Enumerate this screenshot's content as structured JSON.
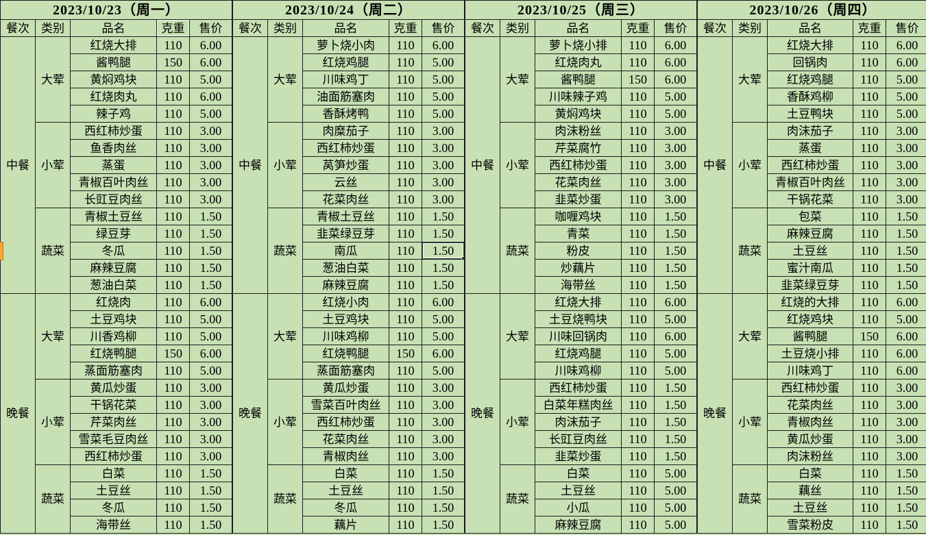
{
  "columns": {
    "meal": "餐次",
    "category": "类别",
    "dish": "品名",
    "weight": "克重",
    "price": "售价"
  },
  "days": [
    {
      "date": "2023/10/23（周一）",
      "meals": [
        {
          "name": "中餐",
          "categories": [
            {
              "name": "大荤",
              "items": [
                [
                  "红烧大排",
                  "110",
                  "6.00"
                ],
                [
                  "酱鸭腿",
                  "150",
                  "6.00"
                ],
                [
                  "黄焖鸡块",
                  "110",
                  "5.00"
                ],
                [
                  "红烧肉丸",
                  "110",
                  "6.00"
                ],
                [
                  "辣子鸡",
                  "110",
                  "5.00"
                ]
              ]
            },
            {
              "name": "小荤",
              "items": [
                [
                  "西红柿炒蛋",
                  "110",
                  "3.00"
                ],
                [
                  "鱼香肉丝",
                  "110",
                  "3.00"
                ],
                [
                  "蒸蛋",
                  "110",
                  "3.00"
                ],
                [
                  "青椒百叶肉丝",
                  "110",
                  "3.00"
                ],
                [
                  "长豇豆肉丝",
                  "110",
                  "3.00"
                ]
              ]
            },
            {
              "name": "蔬菜",
              "items": [
                [
                  "青椒土豆丝",
                  "110",
                  "1.50"
                ],
                [
                  "绿豆芽",
                  "110",
                  "1.50"
                ],
                [
                  "冬瓜",
                  "110",
                  "1.50"
                ],
                [
                  "麻辣豆腐",
                  "110",
                  "1.50"
                ],
                [
                  "葱油白菜",
                  "110",
                  "1.50"
                ]
              ]
            }
          ]
        },
        {
          "name": "晚餐",
          "categories": [
            {
              "name": "大荤",
              "items": [
                [
                  "红烧肉",
                  "110",
                  "6.00"
                ],
                [
                  "土豆鸡块",
                  "110",
                  "5.00"
                ],
                [
                  "川香鸡柳",
                  "110",
                  "5.00"
                ],
                [
                  "红烧鸭腿",
                  "150",
                  "6.00"
                ],
                [
                  "蒸面筋塞肉",
                  "110",
                  "5.00"
                ]
              ]
            },
            {
              "name": "小荤",
              "items": [
                [
                  "黄瓜炒蛋",
                  "110",
                  "3.00"
                ],
                [
                  "干锅花菜",
                  "110",
                  "3.00"
                ],
                [
                  "芹菜肉丝",
                  "110",
                  "3.00"
                ],
                [
                  "雪菜毛豆肉丝",
                  "110",
                  "3.00"
                ],
                [
                  "西红柿炒蛋",
                  "110",
                  "3.00"
                ]
              ]
            },
            {
              "name": "蔬菜",
              "items": [
                [
                  "白菜",
                  "110",
                  "1.50"
                ],
                [
                  "土豆丝",
                  "110",
                  "1.50"
                ],
                [
                  "冬瓜",
                  "110",
                  "1.50"
                ],
                [
                  "海带丝",
                  "110",
                  "1.50"
                ]
              ]
            }
          ]
        }
      ]
    },
    {
      "date": "2023/10/24（周二）",
      "meals": [
        {
          "name": "中餐",
          "categories": [
            {
              "name": "大荤",
              "items": [
                [
                  "萝卜烧小肉",
                  "110",
                  "6.00"
                ],
                [
                  "红烧鸡腿",
                  "110",
                  "5.00"
                ],
                [
                  "川味鸡丁",
                  "110",
                  "5.00"
                ],
                [
                  "油面筋塞肉",
                  "110",
                  "5.00"
                ],
                [
                  "香酥烤鸭",
                  "110",
                  "5.00"
                ]
              ]
            },
            {
              "name": "小荤",
              "items": [
                [
                  "肉糜茄子",
                  "110",
                  "3.00"
                ],
                [
                  "西红柿炒蛋",
                  "110",
                  "3.00"
                ],
                [
                  "莴笋炒蛋",
                  "110",
                  "3.00"
                ],
                [
                  "云丝",
                  "110",
                  "3.00"
                ],
                [
                  "花菜肉丝",
                  "110",
                  "3.00"
                ]
              ]
            },
            {
              "name": "蔬菜",
              "items": [
                [
                  "青椒土豆丝",
                  "110",
                  "1.50"
                ],
                [
                  "韭菜绿豆芽",
                  "110",
                  "1.50"
                ],
                [
                  "南瓜",
                  "110",
                  "1.50"
                ],
                [
                  "葱油白菜",
                  "110",
                  "1.50"
                ],
                [
                  "麻辣豆腐",
                  "110",
                  "1.50"
                ]
              ]
            }
          ]
        },
        {
          "name": "晚餐",
          "categories": [
            {
              "name": "大荤",
              "items": [
                [
                  "红烧小肉",
                  "110",
                  "6.00"
                ],
                [
                  "土豆鸡块",
                  "110",
                  "5.00"
                ],
                [
                  "川味鸡柳",
                  "110",
                  "5.00"
                ],
                [
                  "红烧鸭腿",
                  "150",
                  "6.00"
                ],
                [
                  "蒸面筋塞肉",
                  "110",
                  "5.00"
                ]
              ]
            },
            {
              "name": "小荤",
              "items": [
                [
                  "黄瓜炒蛋",
                  "110",
                  "3.00"
                ],
                [
                  "雪菜百叶肉丝",
                  "110",
                  "3.00"
                ],
                [
                  "西红柿炒蛋",
                  "110",
                  "3.00"
                ],
                [
                  "花菜肉丝",
                  "110",
                  "3.00"
                ],
                [
                  "青椒肉丝",
                  "110",
                  "3.00"
                ]
              ]
            },
            {
              "name": "蔬菜",
              "items": [
                [
                  "白菜",
                  "110",
                  "1.50"
                ],
                [
                  "土豆丝",
                  "110",
                  "1.50"
                ],
                [
                  "冬瓜",
                  "110",
                  "1.50"
                ],
                [
                  "藕片",
                  "110",
                  "1.50"
                ]
              ]
            }
          ]
        }
      ]
    },
    {
      "date": "2023/10/25（周三）",
      "meals": [
        {
          "name": "中餐",
          "categories": [
            {
              "name": "大荤",
              "items": [
                [
                  "萝卜烧小排",
                  "110",
                  "6.00"
                ],
                [
                  "红烧肉丸",
                  "110",
                  "6.00"
                ],
                [
                  "酱鸭腿",
                  "150",
                  "6.00"
                ],
                [
                  "川味辣子鸡",
                  "110",
                  "5.00"
                ],
                [
                  "黄焖鸡块",
                  "110",
                  "5.00"
                ]
              ]
            },
            {
              "name": "小荤",
              "items": [
                [
                  "肉沫粉丝",
                  "110",
                  "3.00"
                ],
                [
                  "芹菜腐竹",
                  "110",
                  "3.00"
                ],
                [
                  "西红柿炒蛋",
                  "110",
                  "3.00"
                ],
                [
                  "花菜肉丝",
                  "110",
                  "3.00"
                ],
                [
                  "韭菜炒蛋",
                  "110",
                  "3.00"
                ]
              ]
            },
            {
              "name": "蔬菜",
              "items": [
                [
                  "咖喱鸡块",
                  "110",
                  "1.50"
                ],
                [
                  "青菜",
                  "110",
                  "1.50"
                ],
                [
                  "粉皮",
                  "110",
                  "1.50"
                ],
                [
                  "炒藕片",
                  "110",
                  "1.50"
                ],
                [
                  "海带丝",
                  "110",
                  "1.50"
                ]
              ]
            }
          ]
        },
        {
          "name": "晚餐",
          "categories": [
            {
              "name": "大荤",
              "items": [
                [
                  "红烧大排",
                  "110",
                  "6.00"
                ],
                [
                  "土豆烧鸭块",
                  "110",
                  "5.00"
                ],
                [
                  "川味回锅肉",
                  "110",
                  "6.00"
                ],
                [
                  "红烧鸡腿",
                  "110",
                  "5.00"
                ],
                [
                  "川味鸡柳",
                  "110",
                  "5.00"
                ]
              ]
            },
            {
              "name": "小荤",
              "items": [
                [
                  "西红柿炒蛋",
                  "110",
                  "1.50"
                ],
                [
                  "白菜年糕肉丝",
                  "110",
                  "1.50"
                ],
                [
                  "肉沫茄子",
                  "110",
                  "1.50"
                ],
                [
                  "长豇豆肉丝",
                  "110",
                  "1.50"
                ],
                [
                  "韭菜炒蛋",
                  "110",
                  "1.50"
                ]
              ]
            },
            {
              "name": "蔬菜",
              "items": [
                [
                  "白菜",
                  "110",
                  "5.00"
                ],
                [
                  "土豆丝",
                  "110",
                  "5.00"
                ],
                [
                  "小瓜",
                  "110",
                  "5.00"
                ],
                [
                  "麻辣豆腐",
                  "110",
                  "5.00"
                ]
              ]
            }
          ]
        }
      ]
    },
    {
      "date": "2023/10/26（周四）",
      "meals": [
        {
          "name": "中餐",
          "categories": [
            {
              "name": "大荤",
              "items": [
                [
                  "红烧大排",
                  "110",
                  "6.00"
                ],
                [
                  "回锅肉",
                  "110",
                  "6.00"
                ],
                [
                  "红烧鸡腿",
                  "110",
                  "5.00"
                ],
                [
                  "香酥鸡柳",
                  "110",
                  "5.00"
                ],
                [
                  "土豆鸭块",
                  "110",
                  "5.00"
                ]
              ]
            },
            {
              "name": "小荤",
              "items": [
                [
                  "肉沫茄子",
                  "110",
                  "3.00"
                ],
                [
                  "蒸蛋",
                  "110",
                  "3.00"
                ],
                [
                  "西红柿炒蛋",
                  "110",
                  "3.00"
                ],
                [
                  "青椒百叶肉丝",
                  "110",
                  "3.00"
                ],
                [
                  "干锅花菜",
                  "110",
                  "3.00"
                ]
              ]
            },
            {
              "name": "蔬菜",
              "items": [
                [
                  "包菜",
                  "110",
                  "1.50"
                ],
                [
                  "麻辣豆腐",
                  "110",
                  "1.50"
                ],
                [
                  "土豆丝",
                  "110",
                  "1.50"
                ],
                [
                  "蜜汁南瓜",
                  "110",
                  "1.50"
                ],
                [
                  "韭菜绿豆芽",
                  "110",
                  "1.50"
                ]
              ]
            }
          ]
        },
        {
          "name": "晚餐",
          "categories": [
            {
              "name": "大荤",
              "items": [
                [
                  "红烧的大排",
                  "110",
                  "6.00"
                ],
                [
                  "红烧鸡块",
                  "110",
                  "5.00"
                ],
                [
                  "酱鸭腿",
                  "150",
                  "6.00"
                ],
                [
                  "土豆烧小排",
                  "110",
                  "6.00"
                ],
                [
                  "川味鸡丁",
                  "110",
                  "6.00"
                ]
              ]
            },
            {
              "name": "小荤",
              "items": [
                [
                  "西红柿炒蛋",
                  "110",
                  "3.00"
                ],
                [
                  "花菜肉丝",
                  "110",
                  "3.00"
                ],
                [
                  "青椒肉丝",
                  "110",
                  "3.00"
                ],
                [
                  "黄瓜炒蛋",
                  "110",
                  "3.00"
                ],
                [
                  "肉沫粉丝",
                  "110",
                  "3.00"
                ]
              ]
            },
            {
              "name": "蔬菜",
              "items": [
                [
                  "白菜",
                  "110",
                  "1.50"
                ],
                [
                  "藕丝",
                  "110",
                  "1.50"
                ],
                [
                  "土豆丝",
                  "110",
                  "1.50"
                ],
                [
                  "雪菜粉皮",
                  "110",
                  "1.50"
                ]
              ]
            }
          ]
        }
      ]
    }
  ],
  "selection": {
    "day_index": 1,
    "dish_name": "南瓜",
    "column": "price",
    "value": "1.50"
  },
  "copy_marquee": {
    "day_index": 0,
    "column_key": "weight"
  },
  "colors": {
    "cell_fill": "#c7e1b4",
    "grid_border": "#1c1c1c",
    "selection_border": "#3d3d3d",
    "left_marker_fill": "#f2a93b",
    "left_marker_border": "#b97d14"
  }
}
